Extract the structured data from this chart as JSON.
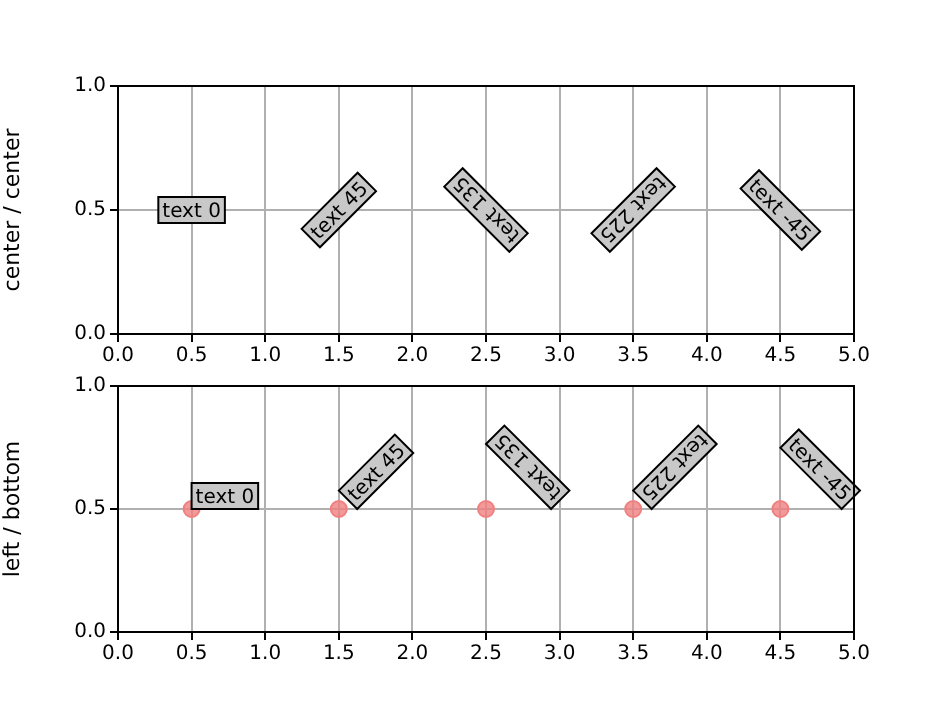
{
  "chart_data": [
    {
      "type": "scatter",
      "ylabel": "center / center",
      "xlim": [
        0,
        5
      ],
      "ylim": [
        0,
        1
      ],
      "xticks": [
        {
          "value": 0,
          "label": "0.0"
        },
        {
          "value": 0.5,
          "label": "0.5"
        },
        {
          "value": 1,
          "label": "1.0"
        },
        {
          "value": 1.5,
          "label": "1.5"
        },
        {
          "value": 2,
          "label": "2.0"
        },
        {
          "value": 2.5,
          "label": "2.5"
        },
        {
          "value": 3,
          "label": "3.0"
        },
        {
          "value": 3.5,
          "label": "3.5"
        },
        {
          "value": 4,
          "label": "4.0"
        },
        {
          "value": 4.5,
          "label": "4.5"
        },
        {
          "value": 5,
          "label": "5.0"
        }
      ],
      "yticks": [
        {
          "value": 0,
          "label": "0.0"
        },
        {
          "value": 0.5,
          "label": "0.5"
        },
        {
          "value": 1,
          "label": "1.0"
        }
      ],
      "grid": true,
      "annotations": [
        "text 0",
        "text 45",
        "text 135",
        "text 225",
        "text -45"
      ]
    },
    {
      "type": "scatter",
      "ylabel": "left / bottom",
      "x": [
        0.5,
        1.5,
        2.5,
        3.5,
        4.5
      ],
      "values": [
        0.5,
        0.5,
        0.5,
        0.5,
        0.5
      ],
      "color": "#f08080",
      "marker": "circle",
      "xlim": [
        0,
        5
      ],
      "ylim": [
        0,
        1
      ],
      "xticks": [
        {
          "value": 0,
          "label": "0.0"
        },
        {
          "value": 0.5,
          "label": "0.5"
        },
        {
          "value": 1,
          "label": "1.0"
        },
        {
          "value": 1.5,
          "label": "1.5"
        },
        {
          "value": 2,
          "label": "2.0"
        },
        {
          "value": 2.5,
          "label": "2.5"
        },
        {
          "value": 3,
          "label": "3.0"
        },
        {
          "value": 3.5,
          "label": "3.5"
        },
        {
          "value": 4,
          "label": "4.0"
        },
        {
          "value": 4.5,
          "label": "4.5"
        },
        {
          "value": 5,
          "label": "5.0"
        }
      ],
      "yticks": [
        {
          "value": 0,
          "label": "0.0"
        },
        {
          "value": 0.5,
          "label": "0.5"
        },
        {
          "value": 1,
          "label": "1.0"
        }
      ],
      "grid": true,
      "annotations": [
        {
          "text": "text 0",
          "x": 0.5,
          "y": 0.5
        },
        {
          "text": "text 45",
          "x": 1.5,
          "y": 0.5
        },
        {
          "text": "text 135",
          "x": 2.5,
          "y": 0.5
        },
        {
          "text": "text 225",
          "x": 3.5,
          "y": 0.5
        },
        {
          "text": "text -45",
          "x": 4.5,
          "y": 0.5
        }
      ]
    }
  ]
}
